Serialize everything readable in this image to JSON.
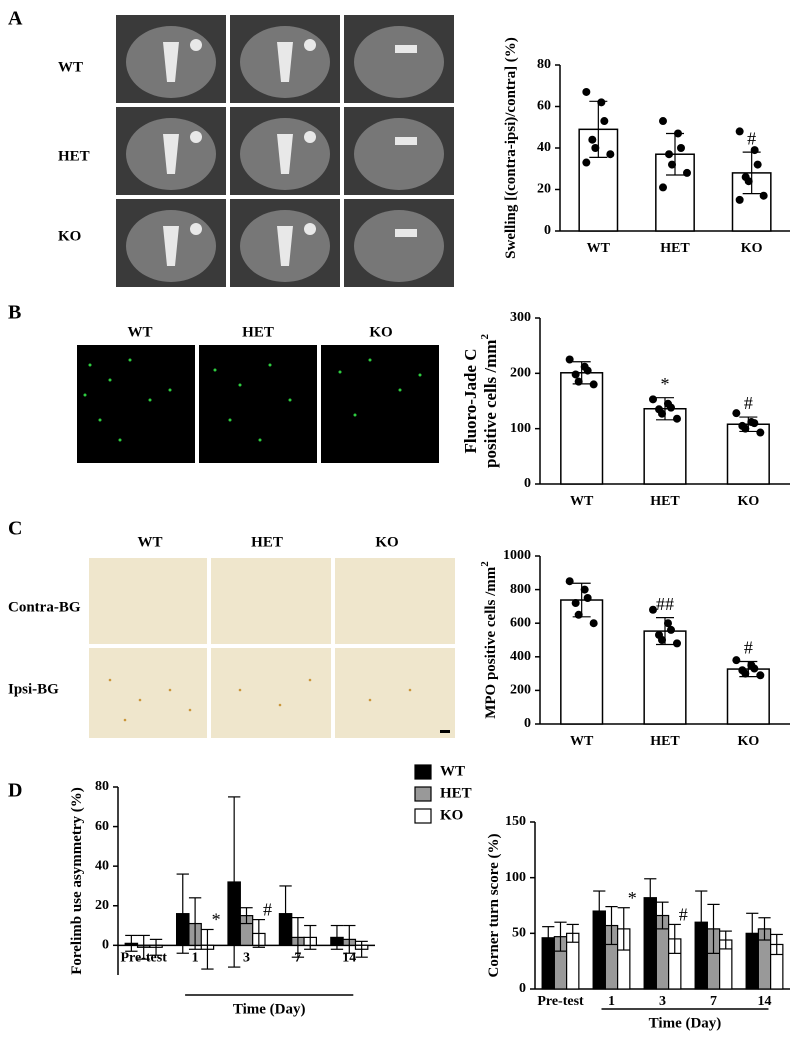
{
  "figure": {
    "panels": [
      "A",
      "B",
      "C",
      "D"
    ],
    "A": {
      "rows": [
        "WT",
        "HET",
        "KO"
      ]
    },
    "B": {
      "columns": [
        "WT",
        "HET",
        "KO"
      ]
    },
    "C": {
      "columns": [
        "WT",
        "HET",
        "KO"
      ],
      "rows": [
        "Contra-BG",
        "Ipsi-BG"
      ]
    }
  },
  "chart_data": [
    {
      "type": "bar",
      "ylabel": [
        "Swelling [(contra-ipsi)/contra] (%)"
      ],
      "categories": [
        "WT",
        "HET",
        "KO"
      ],
      "values": [
        49,
        37,
        28
      ],
      "errors": [
        13.5,
        10,
        10
      ],
      "points": [
        [
          67,
          62,
          53,
          44,
          40,
          37,
          33
        ],
        [
          53,
          47,
          40,
          37,
          32,
          28,
          21
        ],
        [
          48,
          39,
          32,
          26,
          24,
          17,
          15
        ]
      ],
      "annotations": [
        null,
        null,
        "#"
      ],
      "color": "#ffffff",
      "ylim": [
        0,
        80
      ],
      "yticks": [
        0,
        20,
        40,
        60,
        80
      ]
    },
    {
      "type": "bar",
      "ylabel": [
        "Fluoro-Jade C",
        "positive cells /mm"
      ],
      "ylabel_sup": "2",
      "categories": [
        "WT",
        "HET",
        "KO"
      ],
      "values": [
        201,
        136,
        108
      ],
      "errors": [
        20,
        20,
        13
      ],
      "points": [
        [
          225,
          212,
          205,
          198,
          185,
          180
        ],
        [
          153,
          145,
          138,
          135,
          127,
          118
        ],
        [
          128,
          112,
          110,
          105,
          100,
          93
        ]
      ],
      "annotations": [
        null,
        "*",
        "#"
      ],
      "color": "#ffffff",
      "ylim": [
        0,
        300
      ],
      "yticks": [
        0,
        100,
        200,
        300
      ]
    },
    {
      "type": "bar",
      "ylabel": [
        "MPO positive cells /mm"
      ],
      "ylabel_sup": "2",
      "categories": [
        "WT",
        "HET",
        "KO"
      ],
      "values": [
        738,
        553,
        327
      ],
      "errors": [
        100,
        80,
        45
      ],
      "points": [
        [
          850,
          800,
          750,
          720,
          650,
          600
        ],
        [
          680,
          600,
          560,
          530,
          500,
          480
        ],
        [
          380,
          350,
          330,
          320,
          300,
          290
        ]
      ],
      "annotations": [
        null,
        "##",
        "#"
      ],
      "color": "#ffffff",
      "ylim": [
        0,
        1000
      ],
      "yticks": [
        0,
        200,
        400,
        600,
        800,
        1000
      ]
    },
    {
      "type": "grouped_bar",
      "ylabel": [
        "Forelimb use asymmetry (%)"
      ],
      "xlabel": "Time (Day)",
      "categories": [
        "Pre-test",
        "1",
        "3",
        "7",
        "14"
      ],
      "series": [
        {
          "name": "WT",
          "color": "#000000",
          "values": [
            1,
            16,
            32,
            16,
            4
          ],
          "errors": [
            4,
            20,
            43,
            14,
            6
          ],
          "annotations": [
            null,
            null,
            null,
            null,
            null
          ]
        },
        {
          "name": "HET",
          "color": "#999999",
          "values": [
            -1,
            11,
            15,
            4,
            3
          ],
          "errors": [
            6,
            13,
            4,
            10,
            7
          ],
          "annotations": [
            null,
            null,
            null,
            null,
            null
          ]
        },
        {
          "name": "KO",
          "color": "#ffffff",
          "values": [
            -1,
            -2,
            6,
            4,
            -2
          ],
          "errors": [
            4,
            10,
            7,
            6,
            4
          ],
          "annotations": [
            null,
            "*",
            "#",
            null,
            null
          ]
        }
      ],
      "ylim": [
        -15,
        80
      ],
      "yticks": [
        0,
        20,
        40,
        60,
        80
      ],
      "legend": true
    },
    {
      "type": "grouped_bar",
      "ylabel": [
        "Corner turn score (%)"
      ],
      "xlabel": "Time (Day)",
      "categories": [
        "Pre-test",
        "1",
        "3",
        "7",
        "14"
      ],
      "series": [
        {
          "name": "WT",
          "color": "#000000",
          "values": [
            46,
            70,
            82,
            60,
            50
          ],
          "errors": [
            10,
            18,
            17,
            28,
            18
          ],
          "annotations": [
            null,
            null,
            null,
            null,
            null
          ]
        },
        {
          "name": "HET",
          "color": "#999999",
          "values": [
            47,
            57,
            66,
            54,
            54
          ],
          "errors": [
            13,
            17,
            12,
            22,
            10
          ],
          "annotations": [
            null,
            null,
            null,
            null,
            null
          ]
        },
        {
          "name": "KO",
          "color": "#ffffff",
          "values": [
            50,
            54,
            45,
            44,
            40
          ],
          "errors": [
            8,
            19,
            13,
            8,
            9
          ],
          "annotations": [
            null,
            "*",
            "#",
            null,
            null
          ]
        }
      ],
      "ylim": [
        0,
        150
      ],
      "yticks": [
        0,
        50,
        100,
        150
      ],
      "legend": false
    }
  ]
}
